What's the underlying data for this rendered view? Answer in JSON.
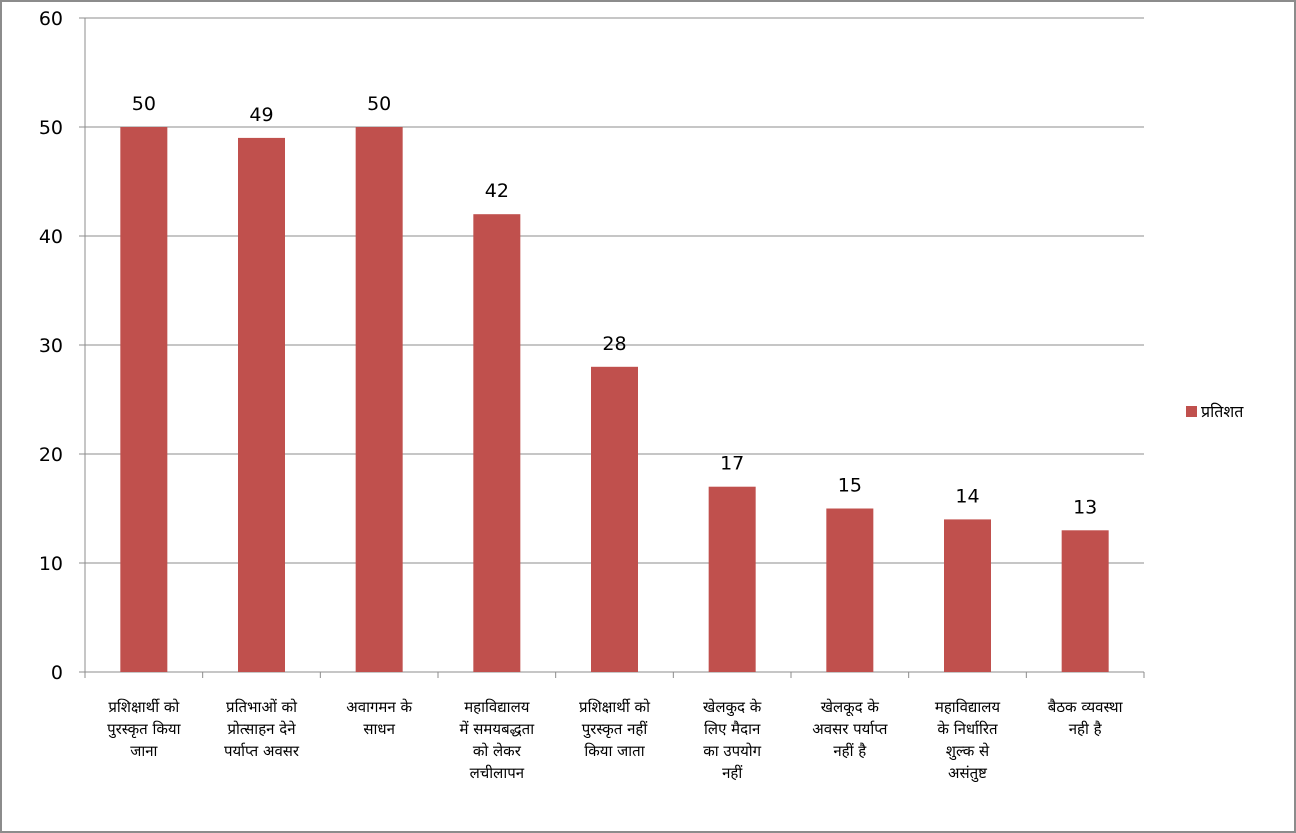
{
  "chart_data": {
    "type": "bar",
    "categories": [
      [
        "प्रशिक्षार्थी को",
        "पुरस्कृत किया",
        "जाना"
      ],
      [
        "प्रतिभाओं को",
        "प्रोत्साहन देने",
        "पर्याप्त अवसर"
      ],
      [
        "अवागमन के",
        "साधन"
      ],
      [
        "महाविद्यालय",
        "में समयबद्धता",
        "को लेकर",
        "लचीलापन"
      ],
      [
        "प्रशिक्षार्थी को",
        "पुरस्कृत नहीं",
        "किया जाता"
      ],
      [
        "खेलकुद के",
        "लिए मैदान",
        "का उपयोग",
        "नहीं"
      ],
      [
        "खेलकूद के",
        "अवसर पर्याप्त",
        "नहीं है"
      ],
      [
        "महाविद्यालय",
        "के निर्धारित",
        "शुल्क से",
        "असंतुष्ट"
      ],
      [
        "बैठक व्यवस्था",
        "नही है"
      ]
    ],
    "series": [
      {
        "name": "प्रतिशत",
        "values": [
          50,
          49,
          50,
          42,
          28,
          17,
          15,
          14,
          13
        ]
      }
    ],
    "ylim": [
      0,
      60
    ],
    "yticks": [
      0,
      10,
      20,
      30,
      40,
      50,
      60
    ],
    "grid": true,
    "legend": "right",
    "colors": {
      "bar": "#c0504d",
      "grid": "#8c8c8c",
      "axis": "#8c8c8c"
    },
    "title": "",
    "xlabel": "",
    "ylabel": ""
  }
}
